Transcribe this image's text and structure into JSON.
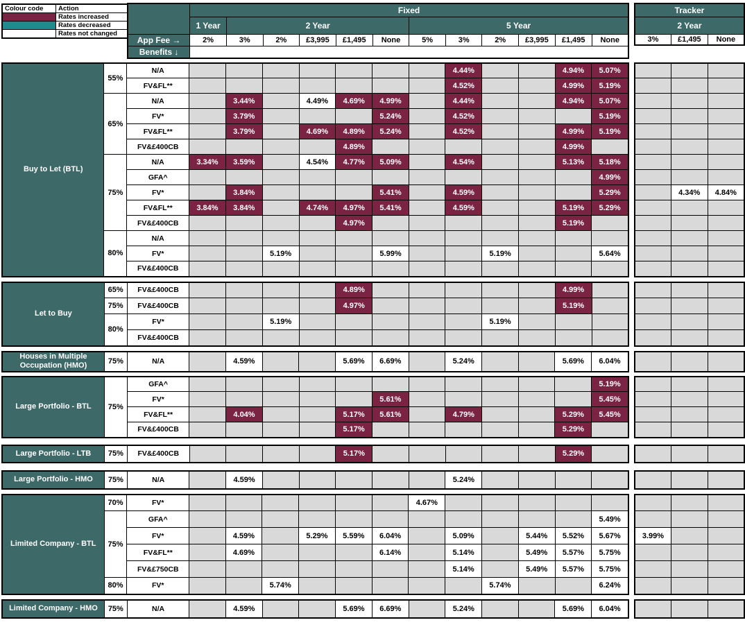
{
  "legend": {
    "col1_header": "Colour code",
    "col2_header": "Action",
    "rows": [
      {
        "label": "Rates increased",
        "swatch": "#7B2343"
      },
      {
        "label": "Rates decreased",
        "swatch": "#1F8B8C"
      },
      {
        "label": "Rates not changed",
        "swatch": "#FFFFFF"
      }
    ]
  },
  "colors": {
    "rates_increased": "#7B2343",
    "rates_decreased": "#1F8B8C",
    "rates_not_changed": "#FFFFFF",
    "empty_cell": "#D9D9D9",
    "header_teal": "#3D6A68"
  },
  "header": {
    "fixed_label": "Fixed",
    "tracker_label": "Tracker",
    "app_fee_label": "App Fee →",
    "benefits_label": "Benefits ↓",
    "fixed_groups": [
      {
        "label": "1 Year",
        "fees": [
          "2%"
        ]
      },
      {
        "label": "2 Year",
        "fees": [
          "3%",
          "2%",
          "£3,995",
          "£1,495",
          "None"
        ]
      },
      {
        "label": "5 Year",
        "fees": [
          "5%",
          "3%",
          "2%",
          "£3,995",
          "£1,495",
          "None"
        ]
      }
    ],
    "tracker_groups": [
      {
        "label": "2 Year",
        "fees": [
          "3%",
          "£1,495",
          "None"
        ]
      }
    ]
  },
  "sections": [
    {
      "name": "Buy to Let (BTL)",
      "rows": [
        {
          "ltv": "55%",
          "ltv_span": 2,
          "benefit": "N/A",
          "cells": {
            "7": [
              "4.44%",
              "inc"
            ],
            "10": [
              "4.94%",
              "inc"
            ],
            "11": [
              "5.07%",
              "inc"
            ]
          }
        },
        {
          "benefit": "FV&FL**",
          "cells": {
            "7": [
              "4.52%",
              "inc"
            ],
            "10": [
              "4.99%",
              "inc"
            ],
            "11": [
              "5.19%",
              "inc"
            ]
          }
        },
        {
          "ltv": "65%",
          "ltv_span": 4,
          "benefit": "N/A",
          "cells": {
            "1": [
              "3.44%",
              "inc"
            ],
            "3": [
              "4.49%",
              "same"
            ],
            "4": [
              "4.69%",
              "inc"
            ],
            "5": [
              "4.99%",
              "inc"
            ],
            "7": [
              "4.44%",
              "inc"
            ],
            "10": [
              "4.94%",
              "inc"
            ],
            "11": [
              "5.07%",
              "inc"
            ]
          }
        },
        {
          "benefit": "FV*",
          "cells": {
            "1": [
              "3.79%",
              "inc"
            ],
            "5": [
              "5.24%",
              "inc"
            ],
            "7": [
              "4.52%",
              "inc"
            ],
            "11": [
              "5.19%",
              "inc"
            ]
          }
        },
        {
          "benefit": "FV&FL**",
          "cells": {
            "1": [
              "3.79%",
              "inc"
            ],
            "3": [
              "4.69%",
              "inc"
            ],
            "4": [
              "4.89%",
              "inc"
            ],
            "5": [
              "5.24%",
              "inc"
            ],
            "7": [
              "4.52%",
              "inc"
            ],
            "10": [
              "4.99%",
              "inc"
            ],
            "11": [
              "5.19%",
              "inc"
            ]
          }
        },
        {
          "benefit": "FV&£400CB",
          "cells": {
            "4": [
              "4.89%",
              "inc"
            ],
            "10": [
              "4.99%",
              "inc"
            ]
          }
        },
        {
          "ltv": "75%",
          "ltv_span": 5,
          "benefit": "N/A",
          "cells": {
            "0": [
              "3.34%",
              "inc"
            ],
            "1": [
              "3.59%",
              "inc"
            ],
            "3": [
              "4.54%",
              "same"
            ],
            "4": [
              "4.77%",
              "inc"
            ],
            "5": [
              "5.09%",
              "inc"
            ],
            "7": [
              "4.54%",
              "inc"
            ],
            "10": [
              "5.13%",
              "inc"
            ],
            "11": [
              "5.18%",
              "inc"
            ]
          }
        },
        {
          "benefit": "GFA^",
          "cells": {
            "11": [
              "4.99%",
              "inc"
            ]
          }
        },
        {
          "benefit": "FV*",
          "cells": {
            "1": [
              "3.84%",
              "inc"
            ],
            "5": [
              "5.41%",
              "inc"
            ],
            "7": [
              "4.59%",
              "inc"
            ],
            "11": [
              "5.29%",
              "inc"
            ],
            "13": [
              "4.34%",
              "same"
            ],
            "14": [
              "4.84%",
              "same"
            ]
          }
        },
        {
          "benefit": "FV&FL**",
          "cells": {
            "0": [
              "3.84%",
              "inc"
            ],
            "1": [
              "3.84%",
              "inc"
            ],
            "3": [
              "4.74%",
              "inc"
            ],
            "4": [
              "4.97%",
              "inc"
            ],
            "5": [
              "5.41%",
              "inc"
            ],
            "7": [
              "4.59%",
              "inc"
            ],
            "10": [
              "5.19%",
              "inc"
            ],
            "11": [
              "5.29%",
              "inc"
            ]
          }
        },
        {
          "benefit": "FV&£400CB",
          "cells": {
            "4": [
              "4.97%",
              "inc"
            ],
            "10": [
              "5.19%",
              "inc"
            ]
          }
        },
        {
          "ltv": "80%",
          "ltv_span": 3,
          "benefit": "N/A",
          "cells": {}
        },
        {
          "benefit": "FV*",
          "cells": {
            "2": [
              "5.19%",
              "same"
            ],
            "5": [
              "5.99%",
              "same"
            ],
            "8": [
              "5.19%",
              "same"
            ],
            "11": [
              "5.64%",
              "same"
            ]
          }
        },
        {
          "benefit": "FV&£400CB",
          "cells": {}
        }
      ]
    },
    {
      "name": "Let to Buy",
      "rows": [
        {
          "ltv": "65%",
          "ltv_span": 1,
          "benefit": "FV&£400CB",
          "cells": {
            "4": [
              "4.89%",
              "inc"
            ],
            "10": [
              "4.99%",
              "inc"
            ]
          }
        },
        {
          "ltv": "75%",
          "ltv_span": 1,
          "benefit": "FV&£400CB",
          "cells": {
            "4": [
              "4.97%",
              "inc"
            ],
            "10": [
              "5.19%",
              "inc"
            ]
          }
        },
        {
          "ltv": "80%",
          "ltv_span": 2,
          "benefit": "FV*",
          "cells": {
            "2": [
              "5.19%",
              "same"
            ],
            "8": [
              "5.19%",
              "same"
            ]
          }
        },
        {
          "benefit": "FV&£400CB",
          "cells": {}
        }
      ]
    },
    {
      "name": "Houses in Multiple Occupation (HMO)",
      "rows": [
        {
          "ltv": "75%",
          "ltv_span": 1,
          "benefit": "N/A",
          "cells": {
            "1": [
              "4.59%",
              "same"
            ],
            "4": [
              "5.69%",
              "same"
            ],
            "5": [
              "6.69%",
              "same"
            ],
            "7": [
              "5.24%",
              "same"
            ],
            "10": [
              "5.69%",
              "same"
            ],
            "11": [
              "6.04%",
              "same"
            ]
          }
        }
      ]
    },
    {
      "name": "Large Portfolio - BTL",
      "rows": [
        {
          "ltv": "75%",
          "ltv_span": 4,
          "benefit": "GFA^",
          "cells": {
            "11": [
              "5.19%",
              "inc"
            ]
          }
        },
        {
          "benefit": "FV*",
          "cells": {
            "5": [
              "5.61%",
              "inc"
            ],
            "11": [
              "5.45%",
              "inc"
            ]
          }
        },
        {
          "benefit": "FV&FL**",
          "cells": {
            "1": [
              "4.04%",
              "inc"
            ],
            "4": [
              "5.17%",
              "inc"
            ],
            "5": [
              "5.61%",
              "inc"
            ],
            "7": [
              "4.79%",
              "inc"
            ],
            "10": [
              "5.29%",
              "inc"
            ],
            "11": [
              "5.45%",
              "inc"
            ]
          }
        },
        {
          "benefit": "FV&£400CB",
          "cells": {
            "4": [
              "5.17%",
              "inc"
            ],
            "10": [
              "5.29%",
              "inc"
            ]
          }
        }
      ]
    },
    {
      "name": "Large Portfolio - LTB",
      "rows": [
        {
          "ltv": "75%",
          "ltv_span": 1,
          "benefit": "FV&£400CB",
          "cells": {
            "4": [
              "5.17%",
              "inc"
            ],
            "10": [
              "5.29%",
              "inc"
            ]
          }
        }
      ]
    },
    {
      "name": "Large Portfolio - HMO",
      "rows": [
        {
          "ltv": "75%",
          "ltv_span": 1,
          "benefit": "N/A",
          "cells": {
            "1": [
              "4.59%",
              "same"
            ],
            "7": [
              "5.24%",
              "same"
            ]
          }
        }
      ]
    },
    {
      "name": "Limited Company - BTL",
      "rows": [
        {
          "ltv": "70%",
          "ltv_span": 1,
          "benefit": "FV*",
          "cells": {
            "6": [
              "4.67%",
              "same"
            ]
          }
        },
        {
          "ltv": "75%",
          "ltv_span": 4,
          "benefit": "GFA^",
          "cells": {
            "11": [
              "5.49%",
              "same"
            ]
          }
        },
        {
          "benefit": "FV*",
          "cells": {
            "1": [
              "4.59%",
              "same"
            ],
            "3": [
              "5.29%",
              "same"
            ],
            "4": [
              "5.59%",
              "same"
            ],
            "5": [
              "6.04%",
              "same"
            ],
            "7": [
              "5.09%",
              "same"
            ],
            "9": [
              "5.44%",
              "same"
            ],
            "10": [
              "5.52%",
              "same"
            ],
            "11": [
              "5.67%",
              "same"
            ],
            "12": [
              "3.99%",
              "same"
            ]
          }
        },
        {
          "benefit": "FV&FL**",
          "cells": {
            "1": [
              "4.69%",
              "same"
            ],
            "5": [
              "6.14%",
              "same"
            ],
            "7": [
              "5.14%",
              "same"
            ],
            "9": [
              "5.49%",
              "same"
            ],
            "10": [
              "5.57%",
              "same"
            ],
            "11": [
              "5.75%",
              "same"
            ]
          }
        },
        {
          "benefit": "FV&£750CB",
          "cells": {
            "7": [
              "5.14%",
              "same"
            ],
            "9": [
              "5.49%",
              "same"
            ],
            "10": [
              "5.57%",
              "same"
            ],
            "11": [
              "5.75%",
              "same"
            ]
          }
        },
        {
          "ltv": "80%",
          "ltv_span": 1,
          "benefit": "FV*",
          "cells": {
            "2": [
              "5.74%",
              "same"
            ],
            "8": [
              "5.74%",
              "same"
            ],
            "11": [
              "6.24%",
              "same"
            ]
          }
        }
      ]
    },
    {
      "name": "Limited Company - HMO",
      "rows": [
        {
          "ltv": "75%",
          "ltv_span": 1,
          "benefit": "N/A",
          "cells": {
            "1": [
              "4.59%",
              "same"
            ],
            "4": [
              "5.69%",
              "same"
            ],
            "5": [
              "6.69%",
              "same"
            ],
            "7": [
              "5.24%",
              "same"
            ],
            "10": [
              "5.69%",
              "same"
            ],
            "11": [
              "6.04%",
              "same"
            ]
          }
        }
      ]
    }
  ]
}
